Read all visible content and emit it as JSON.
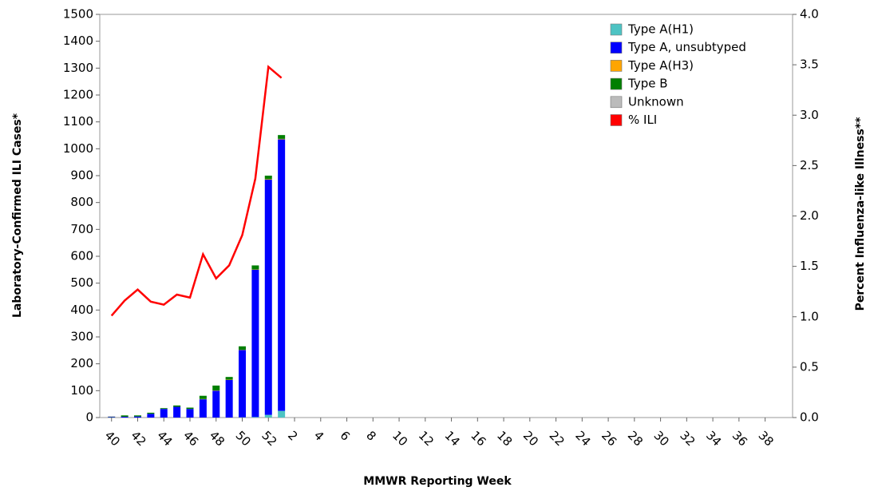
{
  "chart_data": {
    "type": "bar",
    "stacked": true,
    "x_label": "MMWR Reporting Week",
    "y_label": "Laboratory-Confirmed ILI Cases*",
    "y2_label": "Percent Influenza-like Illness**",
    "categories": [
      "40",
      null,
      "42",
      null,
      "44",
      null,
      "46",
      null,
      "48",
      null,
      "50",
      null,
      "52",
      null,
      "2",
      null,
      "4",
      null,
      "6",
      null,
      "8",
      null,
      "10",
      null,
      "12",
      null,
      "14",
      null,
      "16",
      null,
      "18",
      null,
      "20",
      null,
      "22",
      null,
      "24",
      null,
      "26",
      null,
      "28",
      null,
      "30",
      null,
      "32",
      null,
      "34",
      null,
      "36",
      null,
      "38",
      null
    ],
    "ylim": [
      0,
      1500
    ],
    "yticks": [
      0,
      100,
      200,
      300,
      400,
      500,
      600,
      700,
      800,
      900,
      1000,
      1100,
      1200,
      1300,
      1400,
      1500
    ],
    "y2lim": [
      0,
      4
    ],
    "y2ticks": [
      {
        "value": 0,
        "label": "0.0"
      },
      {
        "value": 0.5,
        "label": "0.5"
      },
      {
        "value": 1,
        "label": "1.0"
      },
      {
        "value": 1.5,
        "label": "1.5"
      },
      {
        "value": 2,
        "label": "2.0"
      },
      {
        "value": 2.5,
        "label": "2.5"
      },
      {
        "value": 3,
        "label": "3.0"
      },
      {
        "value": 3.5,
        "label": "3.5"
      },
      {
        "value": 4,
        "label": "4.0"
      }
    ],
    "legend": "top-right",
    "grid": false,
    "series": [
      {
        "name": "Type A(H1)",
        "color": "#4dc3c3",
        "values": [
          0,
          0,
          0,
          0,
          0,
          0,
          0,
          0,
          0,
          0,
          1,
          2,
          10,
          25,
          null,
          null,
          null,
          null,
          null,
          null,
          null,
          null,
          null,
          null,
          null,
          null,
          null,
          null,
          null,
          null,
          null,
          null,
          null,
          null,
          null,
          null,
          null,
          null,
          null,
          null,
          null,
          null,
          null,
          null,
          null,
          null,
          null,
          null,
          null,
          null,
          null,
          null
        ]
      },
      {
        "name": "Type A, unsubtyped",
        "color": "#0000ff",
        "values": [
          2,
          3,
          4,
          14,
          32,
          40,
          32,
          68,
          100,
          140,
          250,
          548,
          875,
          1010,
          null,
          null,
          null,
          null,
          null,
          null,
          null,
          null,
          null,
          null,
          null,
          null,
          null,
          null,
          null,
          null,
          null,
          null,
          null,
          null,
          null,
          null,
          null,
          null,
          null,
          null,
          null,
          null,
          null,
          null,
          null,
          null,
          null,
          null,
          null,
          null,
          null,
          null
        ]
      },
      {
        "name": "Type A(H3)",
        "color": "#ffa500",
        "values": [
          0,
          0,
          0,
          0,
          0,
          0,
          0,
          1,
          1,
          1,
          1,
          1,
          2,
          2,
          null,
          null,
          null,
          null,
          null,
          null,
          null,
          null,
          null,
          null,
          null,
          null,
          null,
          null,
          null,
          null,
          null,
          null,
          null,
          null,
          null,
          null,
          null,
          null,
          null,
          null,
          null,
          null,
          null,
          null,
          null,
          null,
          null,
          null,
          null,
          null,
          null,
          null
        ]
      },
      {
        "name": "Type B",
        "color": "#007f00",
        "values": [
          1,
          5,
          4,
          4,
          3,
          5,
          5,
          12,
          18,
          10,
          13,
          15,
          13,
          14,
          null,
          null,
          null,
          null,
          null,
          null,
          null,
          null,
          null,
          null,
          null,
          null,
          null,
          null,
          null,
          null,
          null,
          null,
          null,
          null,
          null,
          null,
          null,
          null,
          null,
          null,
          null,
          null,
          null,
          null,
          null,
          null,
          null,
          null,
          null,
          null,
          null,
          null
        ]
      },
      {
        "name": "Unknown",
        "color": "#bbbbbb",
        "values": [
          2,
          0,
          0,
          0,
          0,
          0,
          0,
          0,
          0,
          0,
          0,
          0,
          0,
          0,
          null,
          null,
          null,
          null,
          null,
          null,
          null,
          null,
          null,
          null,
          null,
          null,
          null,
          null,
          null,
          null,
          null,
          null,
          null,
          null,
          null,
          null,
          null,
          null,
          null,
          null,
          null,
          null,
          null,
          null,
          null,
          null,
          null,
          null,
          null,
          null,
          null,
          null
        ]
      },
      {
        "name": "% ILI",
        "color": "#ff0000",
        "type": "line",
        "axis": "y2",
        "values": [
          1.01,
          1.16,
          1.27,
          1.15,
          1.12,
          1.22,
          1.19,
          1.62,
          1.38,
          1.51,
          1.81,
          2.37,
          3.48,
          3.37,
          null,
          null,
          null,
          null,
          null,
          null,
          null,
          null,
          null,
          null,
          null,
          null,
          null,
          null,
          null,
          null,
          null,
          null,
          null,
          null,
          null,
          null,
          null,
          null,
          null,
          null,
          null,
          null,
          null,
          null,
          null,
          null,
          null,
          null,
          null,
          null,
          null,
          null
        ]
      }
    ]
  }
}
